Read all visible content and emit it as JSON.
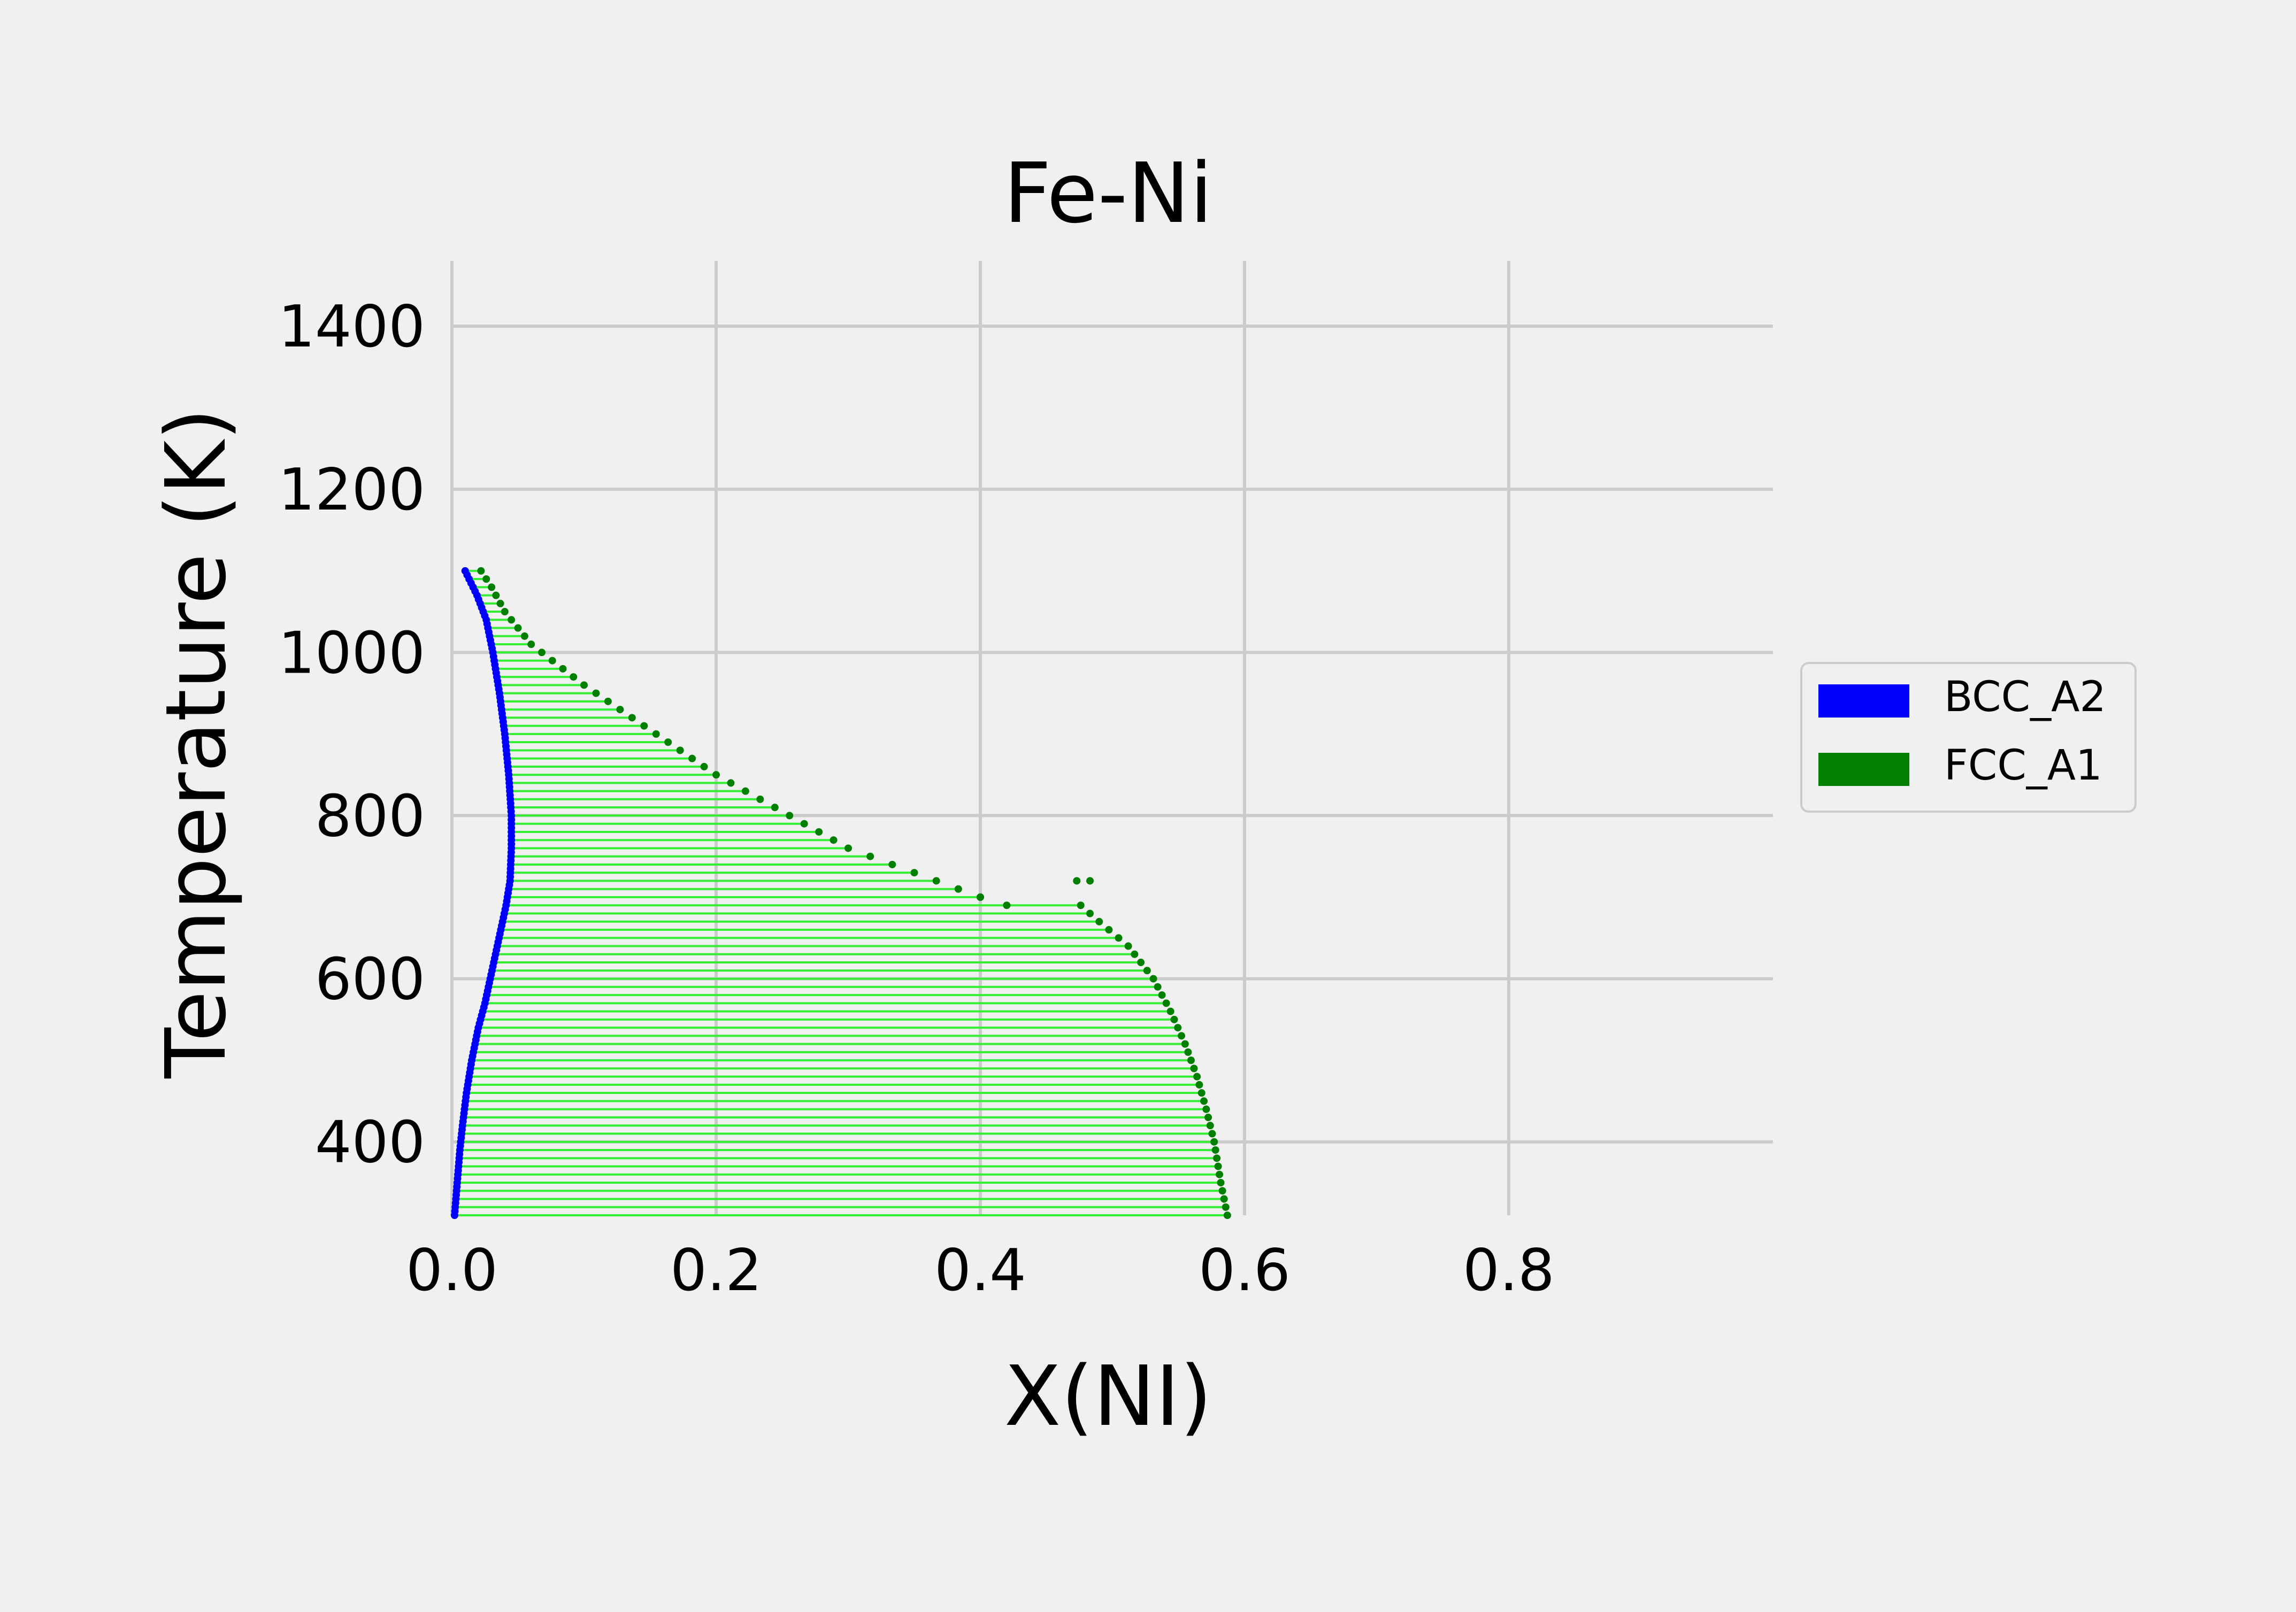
{
  "chart_data": {
    "type": "scatter",
    "title": "Fe-Ni",
    "xlabel": "X(NI)",
    "ylabel": "Temperature (K)",
    "xlim": [
      0.0,
      1.0
    ],
    "ylim": [
      310,
      1480
    ],
    "x_ticks": [
      "0.0",
      "0.2",
      "0.4",
      "0.6",
      "0.8"
    ],
    "x_tick_values": [
      0.0,
      0.2,
      0.4,
      0.6,
      0.8
    ],
    "y_ticks": [
      "400",
      "600",
      "800",
      "1000",
      "1200",
      "1400"
    ],
    "y_tick_values": [
      400,
      600,
      800,
      1000,
      1200,
      1400
    ],
    "grid": true,
    "legend_position": "right",
    "tie_line_color": "#33ee33",
    "series": [
      {
        "name": "BCC_A2",
        "color": "#0000ff",
        "points": [
          [
            0.002,
            310
          ],
          [
            0.004,
            350
          ],
          [
            0.006,
            390
          ],
          [
            0.008,
            420
          ],
          [
            0.011,
            460
          ],
          [
            0.015,
            500
          ],
          [
            0.02,
            540
          ],
          [
            0.025,
            570
          ],
          [
            0.029,
            600
          ],
          [
            0.033,
            630
          ],
          [
            0.037,
            660
          ],
          [
            0.041,
            690
          ],
          [
            0.044,
            720
          ],
          [
            0.045,
            760
          ],
          [
            0.045,
            800
          ],
          [
            0.043,
            850
          ],
          [
            0.04,
            900
          ],
          [
            0.036,
            950
          ],
          [
            0.031,
            1000
          ],
          [
            0.026,
            1040
          ],
          [
            0.019,
            1070
          ],
          [
            0.013,
            1090
          ],
          [
            0.01,
            1100
          ]
        ]
      },
      {
        "name": "FCC_A1",
        "color": "#007f00",
        "points": [
          [
            0.587,
            310
          ],
          [
            0.582,
            350
          ],
          [
            0.577,
            400
          ],
          [
            0.571,
            440
          ],
          [
            0.564,
            480
          ],
          [
            0.555,
            520
          ],
          [
            0.544,
            560
          ],
          [
            0.531,
            600
          ],
          [
            0.512,
            640
          ],
          [
            0.49,
            670
          ],
          [
            0.476,
            690
          ],
          [
            0.448,
            690
          ],
          [
            0.42,
            690
          ],
          [
            0.4,
            700
          ],
          [
            0.3,
            760
          ],
          [
            0.2,
            850
          ],
          [
            0.1,
            960
          ],
          [
            0.06,
            1010
          ],
          [
            0.04,
            1050
          ],
          [
            0.03,
            1080
          ],
          [
            0.022,
            1100
          ]
        ],
        "extra_points": [
          [
            0.473,
            720
          ],
          [
            0.483,
            720
          ],
          [
            0.4,
            700
          ],
          [
            0.42,
            690
          ]
        ]
      }
    ],
    "tie_lines": {
      "t_start": 310,
      "t_end": 1100,
      "step": 10
    }
  }
}
